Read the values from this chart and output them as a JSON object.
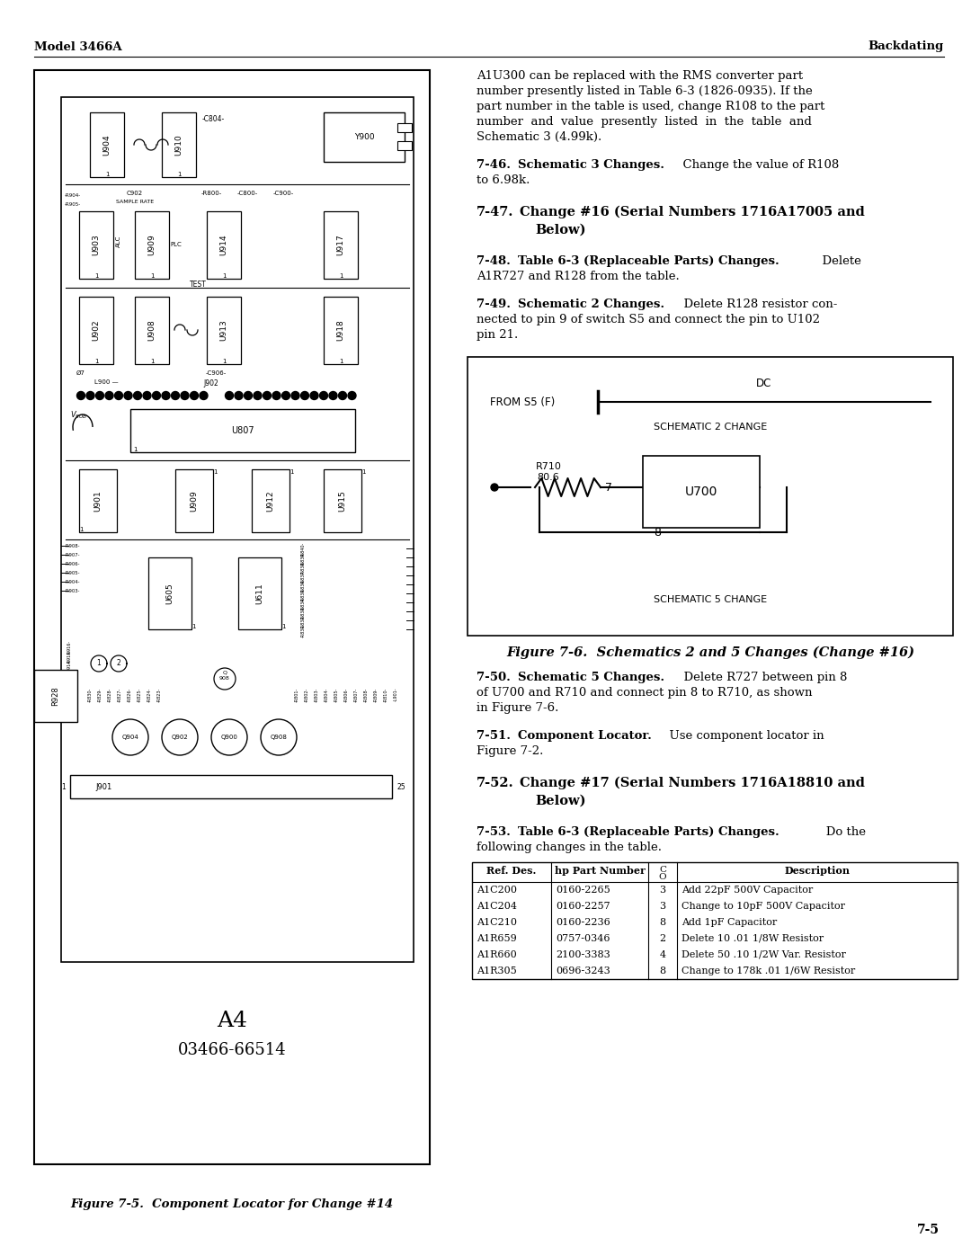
{
  "page_header_left": "Model 3466A",
  "page_header_right": "Backdating",
  "page_number": "7-5",
  "bg_color": "#ffffff",
  "left_panel": {
    "figure_label": "A4",
    "figure_part_number": "03466-66514",
    "figure_caption": "Figure 7-5.  Component Locator for Change #14"
  },
  "table": {
    "rows": [
      [
        "A1C200",
        "0160-2265",
        "3",
        "Add 22pF 500V Capacitor"
      ],
      [
        "A1C204",
        "0160-2257",
        "3",
        "Change to 10pF 500V Capacitor"
      ],
      [
        "A1C210",
        "0160-2236",
        "8",
        "Add 1pF Capacitor"
      ],
      [
        "A1R659",
        "0757-0346",
        "2",
        "Delete 10 .01 1/8W Resistor"
      ],
      [
        "A1R660",
        "2100-3383",
        "4",
        "Delete 50 .10 1/2W Var. Resistor"
      ],
      [
        "A1R305",
        "0696-3243",
        "8",
        "Change to 178k .01 1/6W Resistor"
      ]
    ]
  }
}
